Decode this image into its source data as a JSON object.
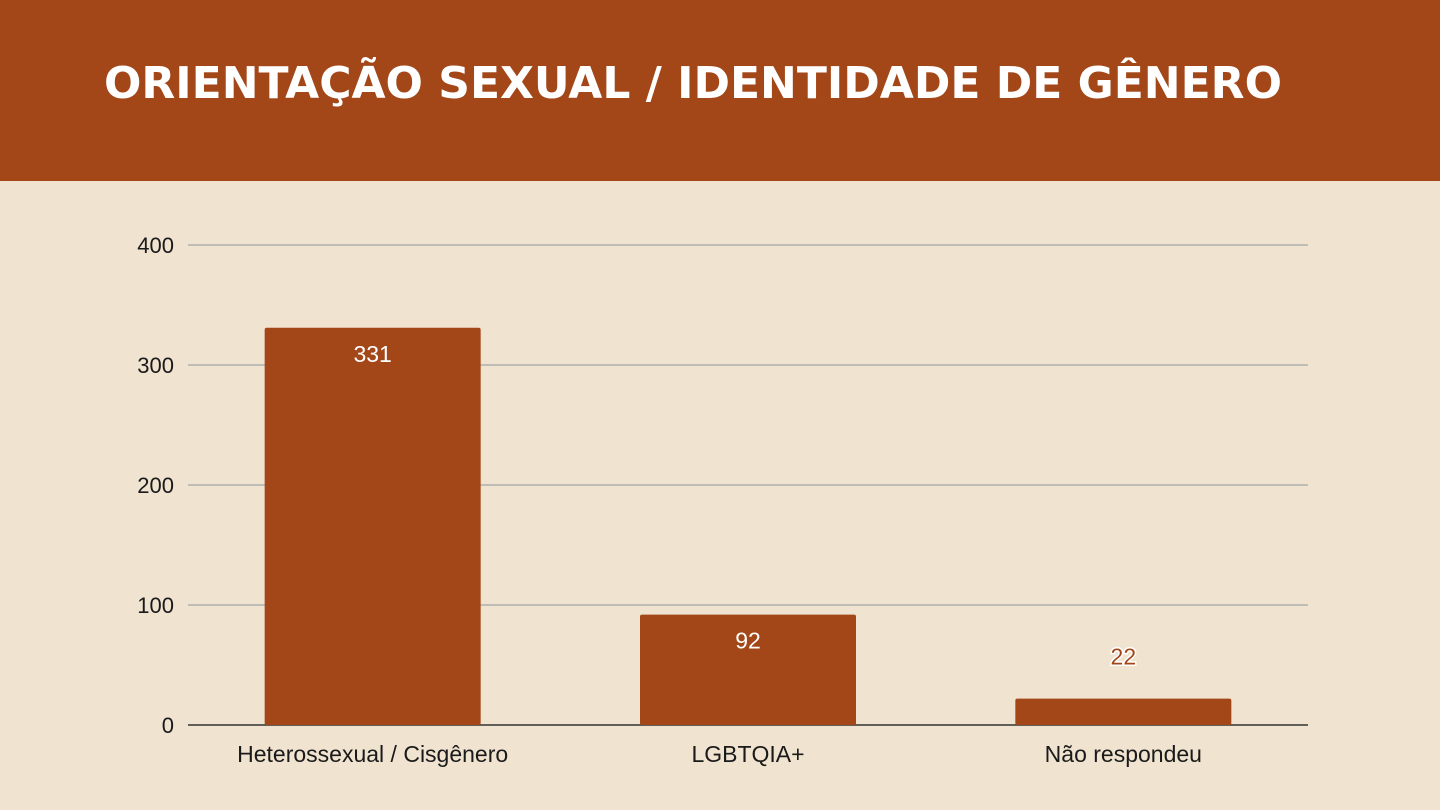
{
  "header": {
    "title": "ORIENTAÇÃO SEXUAL  /  IDENTIDADE DE GÊNERO"
  },
  "colors": {
    "header_bg": "#a34718",
    "page_bg": "#f0e3cf",
    "bar": "#a34718",
    "gridline": "#a0a6ab"
  },
  "chart_data": {
    "type": "bar",
    "categories": [
      "Heterossexual / Cisgênero",
      "LGBTQIA+",
      "Não respondeu"
    ],
    "values": [
      331,
      92,
      22
    ],
    "data_labels": [
      "331",
      "92",
      "22"
    ],
    "yticks": [
      "0",
      "100",
      "200",
      "300",
      "400"
    ],
    "ylim": [
      0,
      400
    ],
    "grid": true,
    "legend": "none"
  }
}
